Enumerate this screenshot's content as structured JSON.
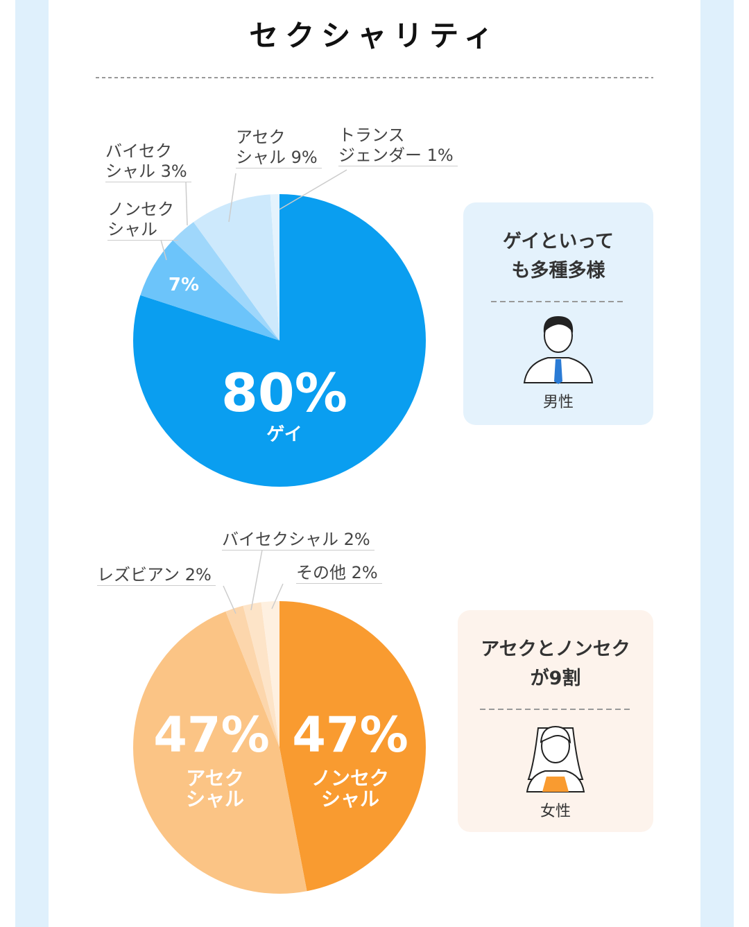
{
  "title": "セクシャリティ",
  "chart_data": [
    {
      "type": "pie",
      "categories": [
        "ゲイ",
        "ノンセク\nシャル",
        "バイセク\nシャル",
        "アセク\nシャル",
        "トランス\nジェンダー"
      ],
      "values": [
        80,
        7,
        3,
        9,
        1
      ],
      "value_labels": [
        "80%",
        "7%",
        "3%",
        "9%",
        "1%"
      ],
      "colors": [
        "#0a9ef0",
        "#6cc4fa",
        "#9fd7fb",
        "#cde9fc",
        "#e4f3fd"
      ]
    },
    {
      "type": "pie",
      "categories": [
        "ノンセク\nシャル",
        "アセク\nシャル",
        "レズビアン",
        "バイセクシャル",
        "その他"
      ],
      "values": [
        47,
        47,
        2,
        2,
        2
      ],
      "value_labels": [
        "47%",
        "47%",
        "2%",
        "2%",
        "2%"
      ],
      "colors": [
        "#f99b30",
        "#fbc485",
        "#fcd6ac",
        "#fde4c8",
        "#fef0e0"
      ]
    }
  ],
  "cards": [
    {
      "heading": "ゲイといって\nも多種多様",
      "label": "男性"
    },
    {
      "heading": "アセクとノンセク\nが9割",
      "label": "女性"
    }
  ]
}
